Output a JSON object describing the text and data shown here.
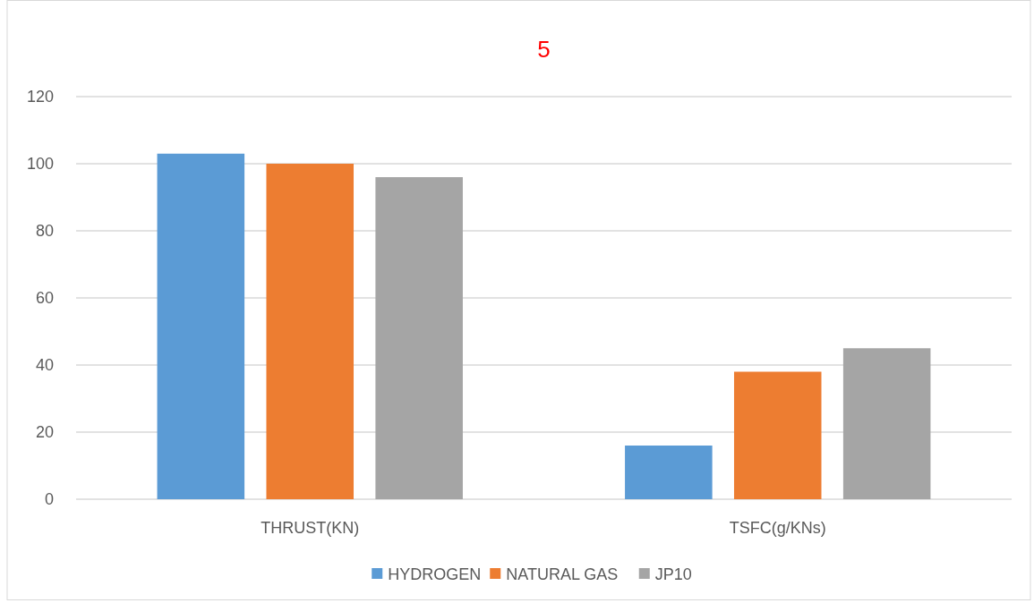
{
  "chart_data": {
    "type": "bar",
    "title": "5",
    "categories": [
      "THRUST(KN)",
      "TSFC(g/KNs)"
    ],
    "series": [
      {
        "name": "HYDROGEN",
        "color": "#5b9bd5",
        "values": [
          103,
          16
        ]
      },
      {
        "name": "NATURAL GAS",
        "color": "#ed7d31",
        "values": [
          100,
          38
        ]
      },
      {
        "name": "JP10",
        "color": "#a5a5a5",
        "values": [
          96,
          45
        ]
      }
    ],
    "ylim": [
      0,
      120
    ],
    "yticks": [
      0,
      20,
      40,
      60,
      80,
      100,
      120
    ],
    "grid": "y",
    "legend": "bottom"
  }
}
